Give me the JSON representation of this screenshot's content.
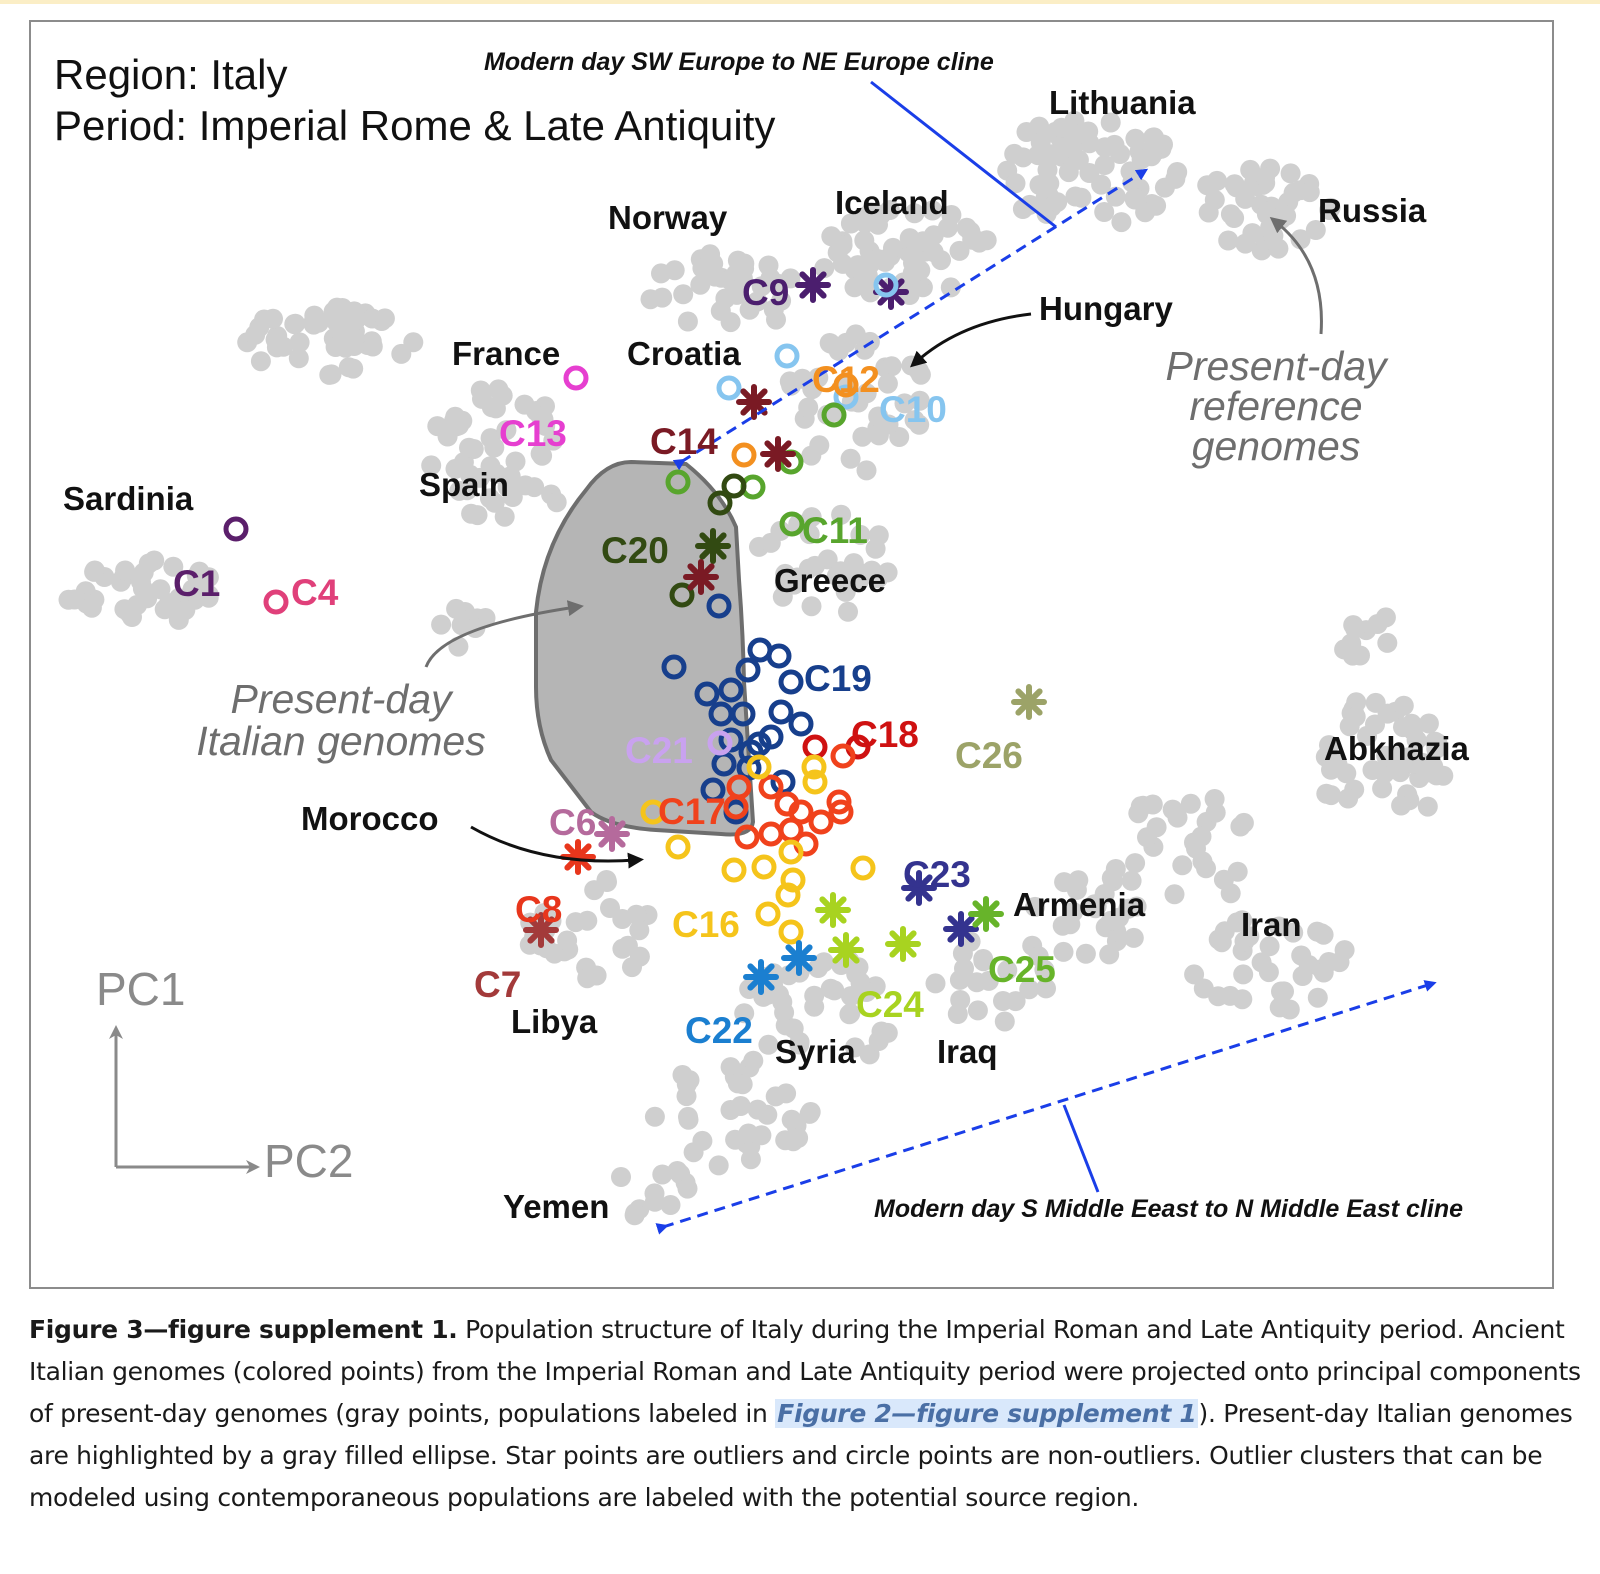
{
  "figure": {
    "header": {
      "region": "Region: Italy",
      "period": "Period: Imperial Rome & Late Antiquity"
    },
    "annotations": {
      "cline_north": "Modern day SW Europe to NE Europe cline",
      "cline_south": "Modern day S Middle Eeast to N Middle East cline",
      "reference": [
        "Present-day",
        "reference",
        "genomes"
      ],
      "italian": [
        "Present-day",
        "Italian genomes"
      ]
    },
    "axes": {
      "vertical": "PC1",
      "horizontal": "PC2"
    }
  },
  "colors": {
    "reference_gray": "#cfcfcf",
    "italian_fill": "#b5b5b5",
    "cline_blue": "#1a3ee8",
    "annotation_gray": "#6e6e6e"
  },
  "chart_data": {
    "type": "scatter",
    "title": "Region: Italy — Period: Imperial Rome & Late Antiquity",
    "xlabel": "PC2",
    "ylabel": "PC1",
    "legend": "Star points are outliers and circle points are non-outliers",
    "populations": [
      "Lithuania",
      "Russia",
      "Norway",
      "Iceland",
      "Hungary",
      "France",
      "Croatia",
      "Spain",
      "Sardinia",
      "Greece",
      "Abkhazia",
      "Morocco",
      "Armenia",
      "Iran",
      "Libya",
      "Syria",
      "Iraq",
      "Yemen"
    ],
    "clusters": [
      {
        "name": "C1",
        "color": "#5b1f6b"
      },
      {
        "name": "C4",
        "color": "#e0407a"
      },
      {
        "name": "C6",
        "color": "#b56a9c"
      },
      {
        "name": "C7",
        "color": "#a33a3a"
      },
      {
        "name": "C8",
        "color": "#e8361c"
      },
      {
        "name": "C9",
        "color": "#4b1e6e"
      },
      {
        "name": "C10",
        "color": "#86c5ef"
      },
      {
        "name": "C11",
        "color": "#58a52d"
      },
      {
        "name": "C12",
        "color": "#f39020"
      },
      {
        "name": "C13",
        "color": "#e63fd0"
      },
      {
        "name": "C14",
        "color": "#7a1a24"
      },
      {
        "name": "C16",
        "color": "#f5c41b"
      },
      {
        "name": "C17",
        "color": "#f0421c"
      },
      {
        "name": "C18",
        "color": "#cf1111"
      },
      {
        "name": "C19",
        "color": "#173f8c"
      },
      {
        "name": "C20",
        "color": "#324a12"
      },
      {
        "name": "C21",
        "color": "#c9a2ef"
      },
      {
        "name": "C22",
        "color": "#1b7fd0"
      },
      {
        "name": "C23",
        "color": "#34338f"
      },
      {
        "name": "C24",
        "color": "#a8d320"
      },
      {
        "name": "C25",
        "color": "#67b42a"
      },
      {
        "name": "C26",
        "color": "#9ca368"
      }
    ]
  },
  "caption": {
    "title": "Figure 3—figure supplement 1.",
    "part1": " Population structure of Italy during the Imperial Roman and Late Antiquity period. Ancient Italian genomes (colored points) from the Imperial Roman and Late Antiquity period were projected onto principal components of present-day genomes (gray points, populations labeled in ",
    "link": "Figure 2—figure supplement 1",
    "part2": "). Present-day Italian genomes are highlighted by a gray filled ellipse. Star points are outliers and circle points are non-outliers. Outlier clusters that can be modeled using contemporaneous populations are labeled with the potential source region."
  }
}
